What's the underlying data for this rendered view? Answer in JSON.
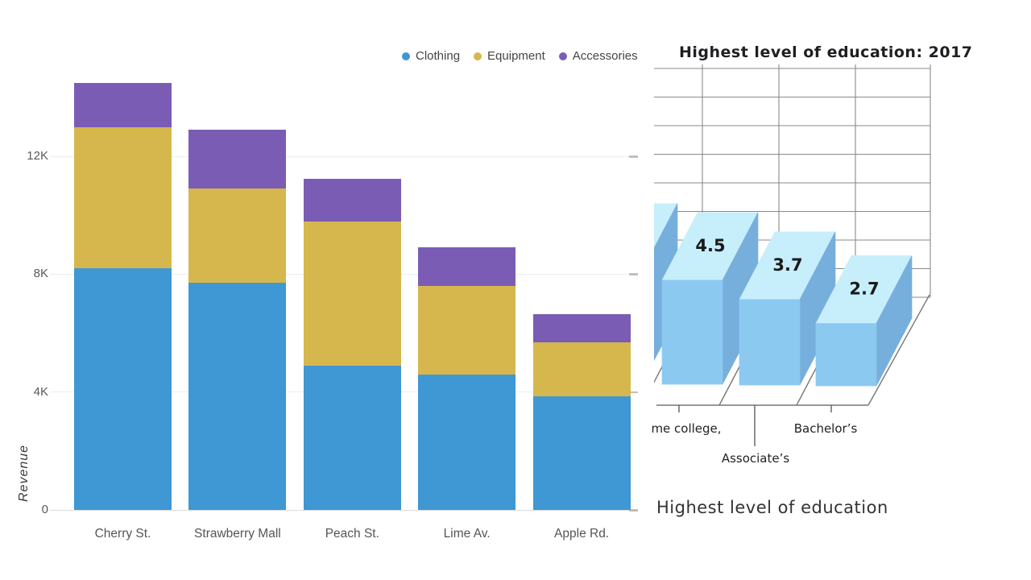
{
  "chart_data": [
    {
      "type": "bar",
      "stacked": true,
      "title": "",
      "ylabel": "Revenue",
      "xlabel": "",
      "categories": [
        "Cherry St.",
        "Strawberry Mall",
        "Peach St.",
        "Lime Av.",
        "Apple Rd."
      ],
      "series": [
        {
          "name": "Clothing",
          "color": "#3f97d3",
          "values": [
            8.2,
            7.7,
            4.9,
            4.6,
            3.85
          ]
        },
        {
          "name": "Equipment",
          "color": "#d6b74d",
          "values": [
            4.8,
            3.2,
            4.9,
            3.0,
            1.85
          ]
        },
        {
          "name": "Accessories",
          "color": "#7a5cb5",
          "values": [
            1.5,
            2.0,
            1.45,
            1.3,
            0.95
          ]
        }
      ],
      "y_ticks": [
        "0",
        "4K",
        "8K",
        "12K"
      ],
      "y_units_per_tick": 4000,
      "ylim": [
        0,
        15800
      ],
      "grid": "on",
      "legend_position": "top-right"
    },
    {
      "type": "bar",
      "projection": "3d",
      "title_clipped": "Highest level of education: 2017",
      "xlabel": "Highest level of education",
      "categories": [
        "me college,",
        "Associate’s",
        "Bachelor’s"
      ],
      "values": [
        4.5,
        3.7,
        2.7
      ],
      "data_labels": [
        "4.5",
        "3.7",
        "2.7"
      ],
      "partial_bar_value": 4.85,
      "bar_colors": {
        "front": "#8cc9f1",
        "top": "#c7eefb",
        "side": "#76afdc"
      },
      "grid": "on",
      "grid_color": "#8a8a8a"
    }
  ]
}
